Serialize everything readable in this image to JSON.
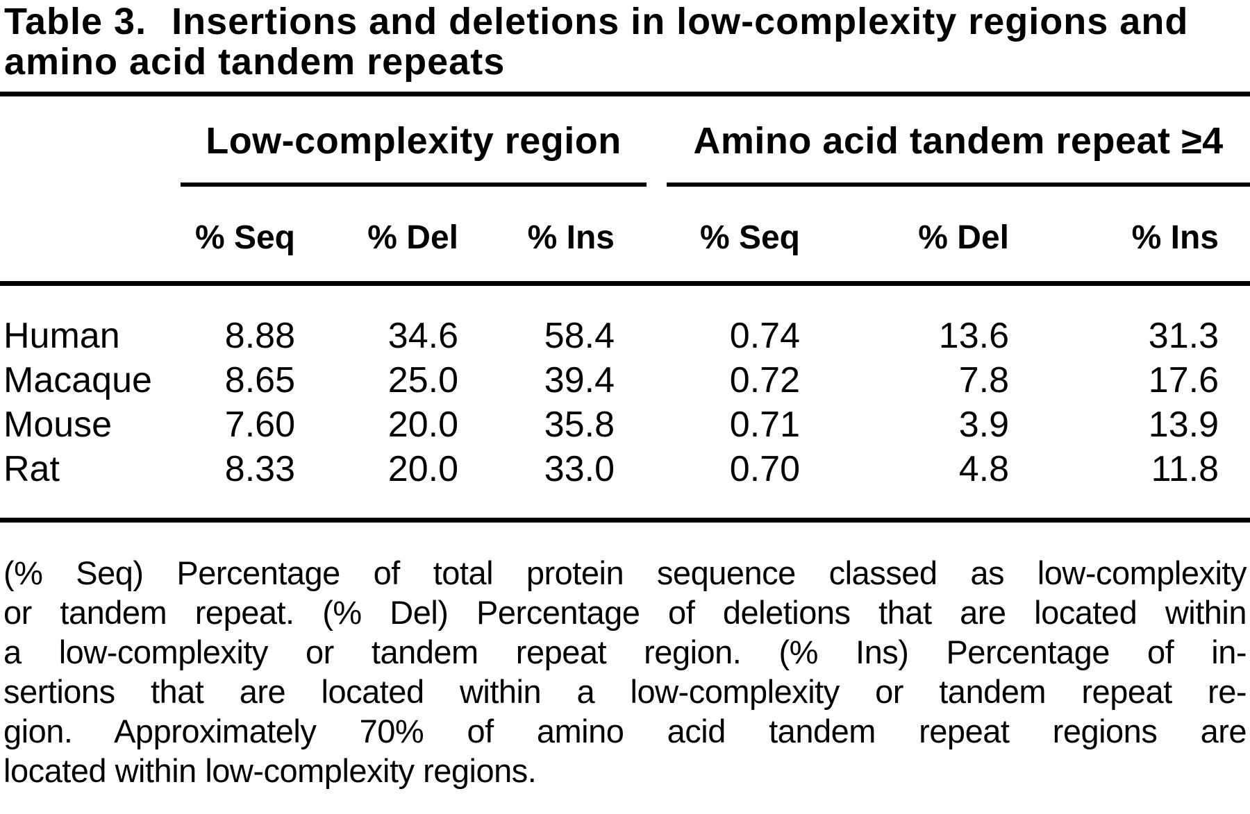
{
  "title": {
    "label": "Table 3.",
    "line1": "Insertions and deletions in low-complexity regions and",
    "line2": "amino acid tandem repeats"
  },
  "table": {
    "col_groups": [
      {
        "label": "Low-complexity region"
      },
      {
        "label": "Amino acid tandem repeat ≥4"
      }
    ],
    "sub_headers": [
      "% Seq",
      "% Del",
      "% Ins",
      "% Seq",
      "% Del",
      "% Ins"
    ],
    "rows": [
      {
        "species": "Human",
        "values": [
          "8.88",
          "34.6",
          "58.4",
          "0.74",
          "13.6",
          "31.3"
        ]
      },
      {
        "species": "Macaque",
        "values": [
          "8.65",
          "25.0",
          "39.4",
          "0.72",
          "7.8",
          "17.6"
        ]
      },
      {
        "species": "Mouse",
        "values": [
          "7.60",
          "20.0",
          "35.8",
          "0.71",
          "3.9",
          "13.9"
        ]
      },
      {
        "species": "Rat",
        "values": [
          "8.33",
          "20.0",
          "33.0",
          "0.70",
          "4.8",
          "11.8"
        ]
      }
    ]
  },
  "footnote": {
    "lines": [
      "(% Seq) Percentage of total protein sequence classed as low-complexity",
      "or tandem repeat. (% Del) Percentage of deletions that are located within",
      "a low-complexity or tandem repeat region. (% Ins) Percentage of in-",
      "sertions that are located within a low-complexity or tandem repeat re-",
      "gion. Approximately 70% of amino acid tandem repeat regions are",
      "located within low-complexity regions."
    ]
  }
}
